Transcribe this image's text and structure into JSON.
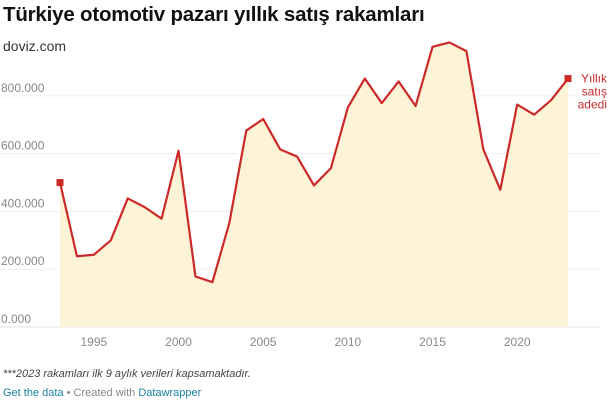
{
  "header": {
    "title": "Türkiye otomotiv pazarı yıllık satış rakamları",
    "subtitle": "doviz.com"
  },
  "footer": {
    "note": "***2023 rakamları ilk 9 aylık verileri kapsamaktadır.",
    "get_data": "Get the data",
    "separator": " • Created with ",
    "tool": "Datawrapper"
  },
  "colors": {
    "line": "#cc2a29",
    "area": "#fdf3d7",
    "grid": "#e3e3e3"
  },
  "chart_data": {
    "type": "area",
    "title": "Türkiye otomotiv pazarı yıllık satış rakamları",
    "xlabel": "",
    "ylabel": "",
    "xlim": [
      1993,
      2023
    ],
    "ylim": [
      0,
      900000
    ],
    "y_ticks": [
      0,
      200000,
      400000,
      600000,
      800000
    ],
    "y_tick_labels": [
      "0.000",
      "200.000",
      "400.000",
      "600.000",
      "800.000"
    ],
    "x_ticks": [
      1995,
      2000,
      2005,
      2010,
      2015,
      2020
    ],
    "x_tick_labels": [
      "1995",
      "2000",
      "2005",
      "2010",
      "2015",
      "2020"
    ],
    "grid": true,
    "legend_position": "right, at last point",
    "series": [
      {
        "name": "Yıllık satış adedi",
        "color": "#cc2a29",
        "label_lines": [
          "Yıllık",
          "satış",
          "adedi"
        ],
        "x": [
          1993,
          1994,
          1995,
          1996,
          1997,
          1998,
          1999,
          2000,
          2001,
          2002,
          2003,
          2004,
          2005,
          2006,
          2007,
          2008,
          2009,
          2010,
          2011,
          2012,
          2013,
          2014,
          2015,
          2016,
          2017,
          2018,
          2019,
          2020,
          2021,
          2022,
          2023
        ],
        "values": [
          500000,
          245000,
          250000,
          300000,
          445000,
          415000,
          375000,
          610000,
          175000,
          155000,
          360000,
          680000,
          720000,
          615000,
          590000,
          490000,
          550000,
          760000,
          860000,
          775000,
          850000,
          765000,
          970000,
          985000,
          955000,
          615000,
          475000,
          770000,
          735000,
          785000,
          860000
        ]
      }
    ]
  }
}
